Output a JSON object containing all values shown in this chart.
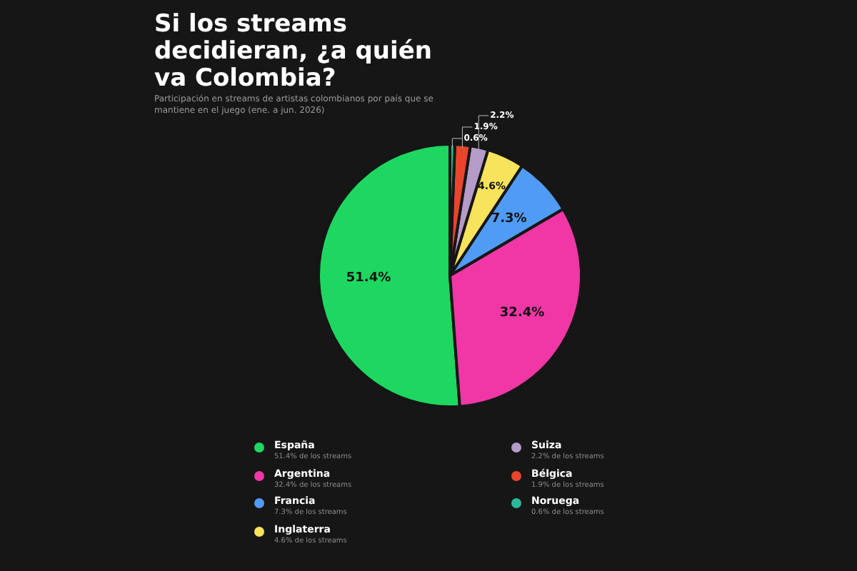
{
  "chart_data": {
    "type": "pie",
    "title": "Si los streams decidieran, ¿a quién va Colombia?",
    "subtitle": "Participación en streams de artistas colombianos por país que se mantiene en el juego (ene. a jun. 2026)",
    "categories": [
      "España",
      "Argentina",
      "Francia",
      "Inglaterra",
      "Suiza",
      "Bélgica",
      "Noruega"
    ],
    "values": [
      51.4,
      32.4,
      7.3,
      4.6,
      2.2,
      1.9,
      0.6
    ],
    "colors": [
      "#1ed760",
      "#f037a5",
      "#509bf5",
      "#f7e35c",
      "#b49bc8",
      "#e8452c",
      "#2bb79a"
    ],
    "value_labels": [
      "51.4%",
      "32.4%",
      "7.3%",
      "4.6%",
      "2.2%",
      "1.9%",
      "0.6%"
    ],
    "legend": "bottom",
    "annotations": [
      "51.4% de los streams",
      "32.4% de los streams",
      "7.3% de los streams",
      "4.6% de los streams",
      "2.2% de los streams",
      "1.9% de los streams",
      "0.6% de los streams"
    ]
  }
}
